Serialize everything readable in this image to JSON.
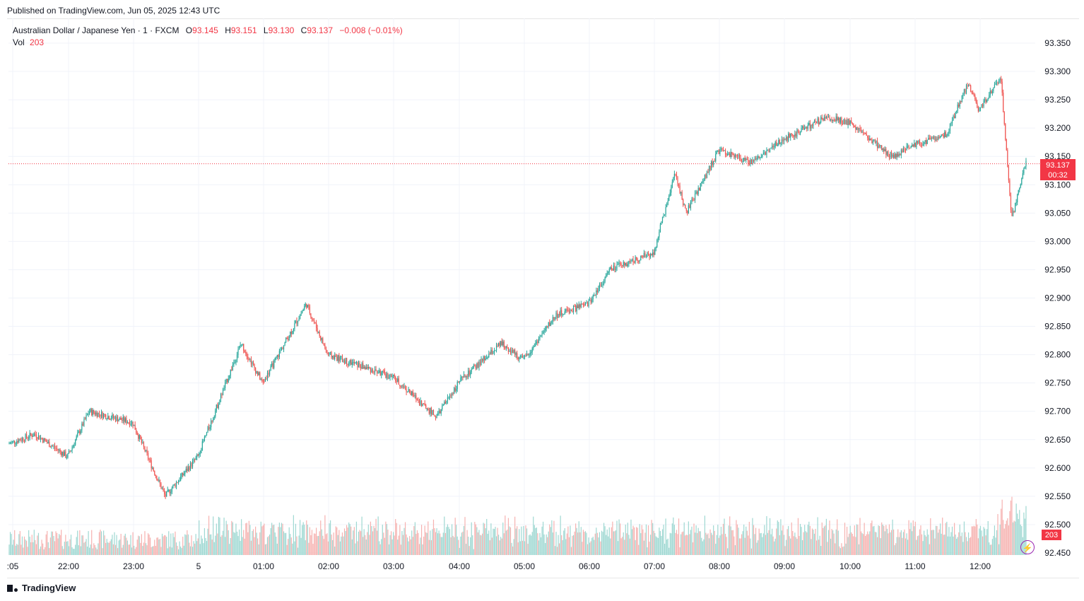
{
  "header": {
    "published": "Published on TradingView.com, Jun 05, 2025 12:43 UTC"
  },
  "legend": {
    "symbol": "Australian Dollar / Japanese Yen · 1 · FXCM",
    "open_label": "O",
    "open": "93.145",
    "high_label": "H",
    "high": "93.151",
    "low_label": "L",
    "low": "93.130",
    "close_label": "C",
    "close": "93.137",
    "change": "−0.008 (−0.01%)",
    "vol_label": "Vol",
    "vol": "203"
  },
  "price_tag": {
    "price": "93.137",
    "countdown": "00:32"
  },
  "volume_tag": "203",
  "footer": {
    "brand": "TradingView"
  },
  "colors": {
    "up": "#26a69a",
    "down": "#ef5350",
    "up_vol": "#9fd8d2",
    "down_vol": "#f6b2b0",
    "tag": "#f23645",
    "bolt": "#9c27b0"
  },
  "icons": {
    "brand_logo": "tradingview-logo-icon",
    "bolt": "lightning-bolt-icon"
  },
  "chart_data": {
    "type": "candlestick",
    "title": "Australian Dollar / Japanese Yen · 1 · FXCM",
    "ylim": [
      92.45,
      93.35
    ],
    "y_ticks": [
      "93.350",
      "93.300",
      "93.250",
      "93.200",
      "93.150",
      "93.100",
      "93.050",
      "93.000",
      "92.950",
      "92.900",
      "92.850",
      "92.800",
      "92.750",
      "92.700",
      "92.650",
      "92.600",
      "92.550",
      "92.500",
      "92.450"
    ],
    "x_ticks": [
      ":05",
      "22:00",
      "23:00",
      "5",
      "01:00",
      "02:00",
      "03:00",
      "04:00",
      "05:00",
      "06:00",
      "07:00",
      "08:00",
      "09:00",
      "10:00",
      "11:00",
      "12:00"
    ],
    "last_price": 93.137,
    "approx_price_path": [
      {
        "t": ":05",
        "price": 92.6
      },
      {
        "t": "21:30",
        "price": 92.66
      },
      {
        "t": "22:00",
        "price": 92.62
      },
      {
        "t": "22:20",
        "price": 92.7
      },
      {
        "t": "23:00",
        "price": 92.68
      },
      {
        "t": "23:30",
        "price": 92.55
      },
      {
        "t": "5",
        "price": 92.62
      },
      {
        "t": "00:40",
        "price": 92.82
      },
      {
        "t": "01:00",
        "price": 92.75
      },
      {
        "t": "01:40",
        "price": 92.89
      },
      {
        "t": "02:00",
        "price": 92.8
      },
      {
        "t": "03:00",
        "price": 92.76
      },
      {
        "t": "03:40",
        "price": 92.69
      },
      {
        "t": "04:00",
        "price": 92.75
      },
      {
        "t": "04:40",
        "price": 92.82
      },
      {
        "t": "05:00",
        "price": 92.79
      },
      {
        "t": "05:30",
        "price": 92.87
      },
      {
        "t": "06:00",
        "price": 92.89
      },
      {
        "t": "06:20",
        "price": 92.95
      },
      {
        "t": "07:00",
        "price": 92.98
      },
      {
        "t": "07:20",
        "price": 93.12
      },
      {
        "t": "07:30",
        "price": 93.05
      },
      {
        "t": "08:00",
        "price": 93.16
      },
      {
        "t": "08:30",
        "price": 93.14
      },
      {
        "t": "09:00",
        "price": 93.18
      },
      {
        "t": "09:40",
        "price": 93.22
      },
      {
        "t": "10:00",
        "price": 93.21
      },
      {
        "t": "10:40",
        "price": 93.15
      },
      {
        "t": "11:00",
        "price": 93.17
      },
      {
        "t": "11:30",
        "price": 93.19
      },
      {
        "t": "11:50",
        "price": 93.28
      },
      {
        "t": "12:00",
        "price": 93.23
      },
      {
        "t": "12:20",
        "price": 93.29
      },
      {
        "t": "12:30",
        "price": 93.04
      },
      {
        "t": "12:43",
        "price": 93.137
      }
    ]
  }
}
